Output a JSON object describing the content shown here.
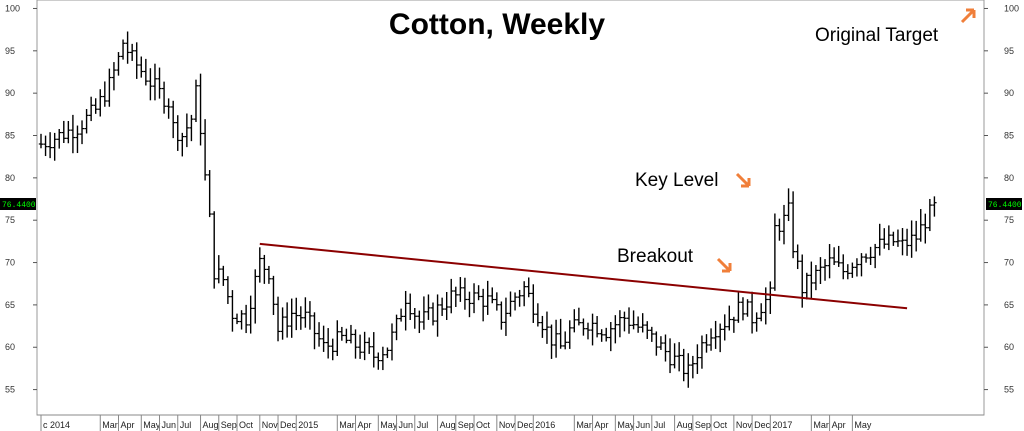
{
  "chart_data": {
    "type": "ohlc",
    "title": "Cotton, Weekly",
    "ylim": [
      52,
      101
    ],
    "yticks": [
      55,
      60,
      65,
      70,
      75,
      80,
      85,
      90,
      95,
      100
    ],
    "last_price_label": "76.4400",
    "x_labels": [
      "c 2014",
      "Mar",
      "Apr",
      "May",
      "Jun",
      "Jul",
      "Aug",
      "Sep",
      "Oct",
      "Nov",
      "Dec",
      "2015",
      "Mar",
      "Apr",
      "May",
      "Jun",
      "Jul",
      "Aug",
      "Sep",
      "Oct",
      "Nov",
      "Dec",
      "2016",
      "Mar",
      "Apr",
      "May",
      "Jun",
      "Jul",
      "Aug",
      "Sep",
      "Oct",
      "Nov",
      "Dec",
      "2017",
      "Mar",
      "Apr",
      "May"
    ],
    "annotations": [
      {
        "text": "Key Level",
        "arrow": "down-right"
      },
      {
        "text": "Breakout",
        "arrow": "down-right"
      },
      {
        "text": "Original Target",
        "arrow": "up-right"
      }
    ],
    "trendline": {
      "start": {
        "week": 48,
        "value": 72.2
      },
      "end": {
        "week": 190,
        "value": 64.6
      },
      "color": "#8b0000"
    },
    "weekly_close_anchors": [
      [
        0,
        84
      ],
      [
        4,
        85
      ],
      [
        8,
        86
      ],
      [
        12,
        88
      ],
      [
        15,
        91
      ],
      [
        17,
        94
      ],
      [
        18,
        96
      ],
      [
        20,
        94
      ],
      [
        23,
        92
      ],
      [
        26,
        90
      ],
      [
        28,
        89
      ],
      [
        29,
        86
      ],
      [
        31,
        85
      ],
      [
        33,
        87
      ],
      [
        34,
        90
      ],
      [
        35,
        86
      ],
      [
        36,
        80
      ],
      [
        37,
        75
      ],
      [
        38,
        69
      ],
      [
        40,
        68
      ],
      [
        42,
        64
      ],
      [
        45,
        63.5
      ],
      [
        48,
        70
      ],
      [
        50,
        69
      ],
      [
        52,
        62
      ],
      [
        55,
        64
      ],
      [
        58,
        63.5
      ],
      [
        62,
        60
      ],
      [
        66,
        61
      ],
      [
        70,
        60
      ],
      [
        73,
        59
      ],
      [
        76,
        60
      ],
      [
        78,
        62.5
      ],
      [
        80,
        66
      ],
      [
        83,
        63
      ],
      [
        86,
        64
      ],
      [
        90,
        66
      ],
      [
        94,
        66
      ],
      [
        98,
        65.5
      ],
      [
        101,
        63.5
      ],
      [
        104,
        66
      ],
      [
        106,
        67
      ],
      [
        108,
        65
      ],
      [
        112,
        61
      ],
      [
        114,
        60
      ],
      [
        116,
        62
      ],
      [
        120,
        63
      ],
      [
        124,
        62
      ],
      [
        128,
        63.5
      ],
      [
        132,
        62
      ],
      [
        136,
        60
      ],
      [
        139,
        58.5
      ],
      [
        142,
        57
      ],
      [
        144,
        59.5
      ],
      [
        147,
        62
      ],
      [
        150,
        63
      ],
      [
        154,
        65
      ],
      [
        156,
        63.5
      ],
      [
        158,
        65
      ],
      [
        160,
        66
      ],
      [
        161,
        74
      ],
      [
        163,
        75
      ],
      [
        164,
        76
      ],
      [
        165,
        72
      ],
      [
        167,
        67
      ],
      [
        170,
        68.5
      ],
      [
        173,
        70
      ],
      [
        176,
        69
      ],
      [
        180,
        71
      ],
      [
        184,
        72
      ],
      [
        187,
        72.5
      ],
      [
        189,
        72
      ],
      [
        192,
        73
      ],
      [
        194,
        75
      ],
      [
        196,
        76.44
      ]
    ]
  },
  "colors": {
    "bars": "#000000",
    "trendline": "#8b0000",
    "arrow": "#f07f3a",
    "price_box": "#000000",
    "price_text": "#00ff00"
  }
}
